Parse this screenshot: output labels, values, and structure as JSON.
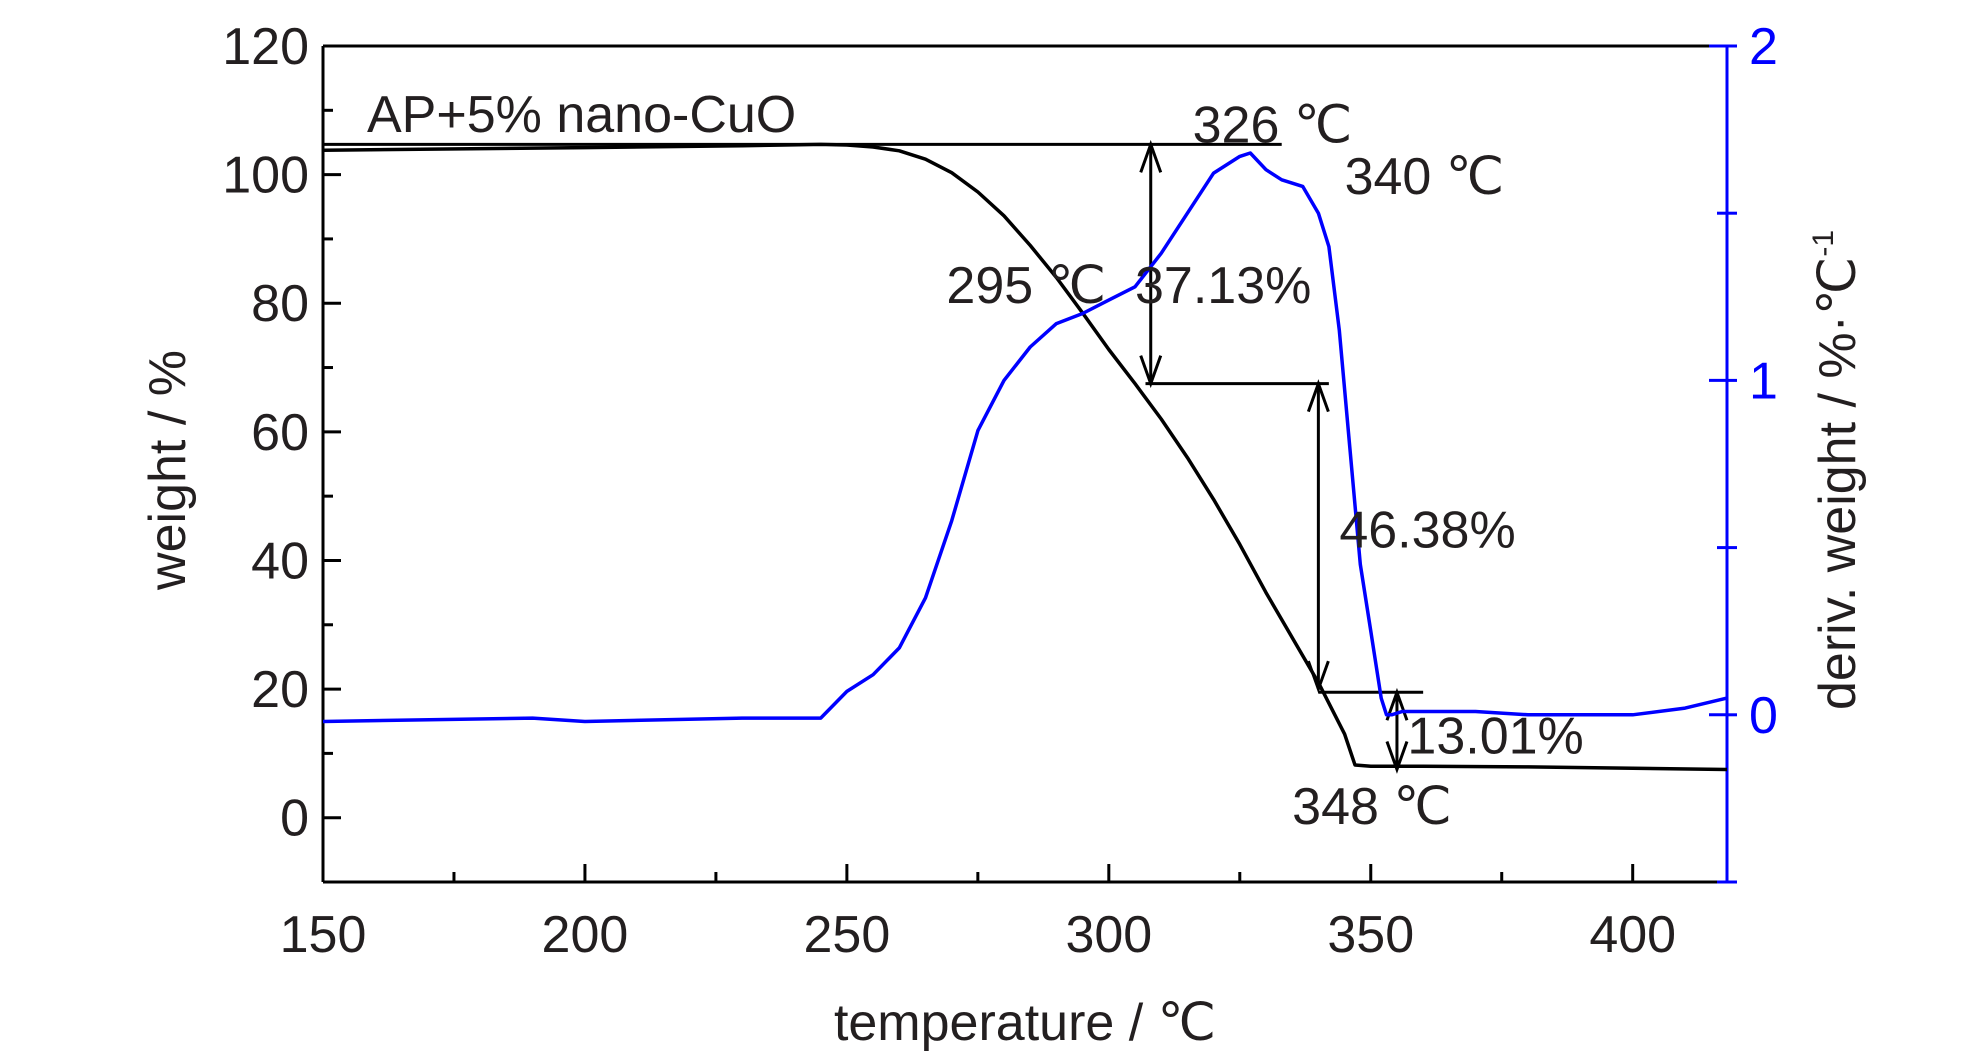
{
  "chart_data": {
    "type": "line",
    "legend_text": "AP+5% nano-CuO",
    "xlabel": "temperature / ℃",
    "ylabel_left": "weight / %",
    "ylabel_right": "deriv. weight / %·℃",
    "ylabel_right_sup": "-1",
    "xlim": [
      150,
      418
    ],
    "ylim_left": [
      -10,
      120
    ],
    "ylim_right": [
      -0.5,
      2
    ],
    "x_ticks": [
      150,
      200,
      250,
      300,
      350,
      400
    ],
    "y_ticks_left": [
      0,
      20,
      40,
      60,
      80,
      100,
      120
    ],
    "y_ticks_right": [
      0,
      1,
      2
    ],
    "grid": false,
    "series": [
      {
        "axis": "left",
        "color": "#000000",
        "x": [
          150,
          200,
          230,
          245,
          250,
          255,
          260,
          265,
          270,
          275,
          280,
          285,
          290,
          295,
          300,
          305,
          310,
          315,
          320,
          325,
          330,
          335,
          340,
          345,
          347,
          350,
          360,
          380,
          400,
          418
        ],
        "y": [
          103.8,
          104.2,
          104.5,
          104.7,
          104.6,
          104.3,
          103.7,
          102.4,
          100.3,
          97.3,
          93.6,
          89.0,
          84.0,
          78.5,
          72.8,
          67.5,
          62.0,
          56.0,
          49.5,
          42.5,
          35.0,
          28.0,
          21.0,
          13.0,
          8.2,
          8.0,
          8.0,
          7.9,
          7.7,
          7.5
        ]
      },
      {
        "axis": "right",
        "color": "#0000ff",
        "x": [
          150,
          190,
          200,
          230,
          245,
          250,
          255,
          260,
          265,
          270,
          275,
          280,
          285,
          290,
          295,
          300,
          305,
          310,
          315,
          320,
          325,
          327,
          330,
          333,
          337,
          340,
          342,
          344,
          346,
          348,
          350,
          352,
          353,
          354,
          356,
          360,
          370,
          380,
          390,
          400,
          410,
          418
        ],
        "y": [
          -0.02,
          -0.01,
          -0.02,
          -0.01,
          -0.01,
          0.07,
          0.12,
          0.2,
          0.35,
          0.58,
          0.85,
          1.0,
          1.1,
          1.17,
          1.2,
          1.24,
          1.28,
          1.38,
          1.5,
          1.62,
          1.67,
          1.68,
          1.63,
          1.6,
          1.58,
          1.5,
          1.4,
          1.15,
          0.8,
          0.45,
          0.25,
          0.05,
          0.0,
          0.0,
          0.01,
          0.01,
          0.01,
          0.0,
          0.0,
          0.0,
          0.02,
          0.05
        ]
      }
    ],
    "markers": [
      {
        "type": "hline",
        "x1": 150,
        "x2": 333,
        "y": 104.7
      },
      {
        "type": "hline",
        "x1": 307,
        "x2": 342,
        "y": 67.5
      },
      {
        "type": "hline",
        "x1": 340,
        "x2": 360,
        "y": 19.5
      },
      {
        "type": "double_arrow",
        "x": 308,
        "y1": 104.7,
        "y2": 67.5
      },
      {
        "type": "double_arrow",
        "x": 340,
        "y1": 67.5,
        "y2": 20.0
      },
      {
        "type": "double_arrow",
        "x": 355,
        "y1": 19.5,
        "y2": 7.5
      }
    ],
    "annotations": [
      {
        "text": "326 ℃",
        "x": 316,
        "y": 105
      },
      {
        "text": "340 ℃",
        "x": 345,
        "y": 97
      },
      {
        "text": "295 ℃",
        "x": 269,
        "y": 80
      },
      {
        "text": "37.13%",
        "x": 305,
        "y": 80
      },
      {
        "text": "46.38%",
        "x": 344,
        "y": 42
      },
      {
        "text": "13.01%",
        "x": 357,
        "y": 10
      },
      {
        "text": "348 ℃",
        "x": 335,
        "y": -1
      }
    ]
  }
}
